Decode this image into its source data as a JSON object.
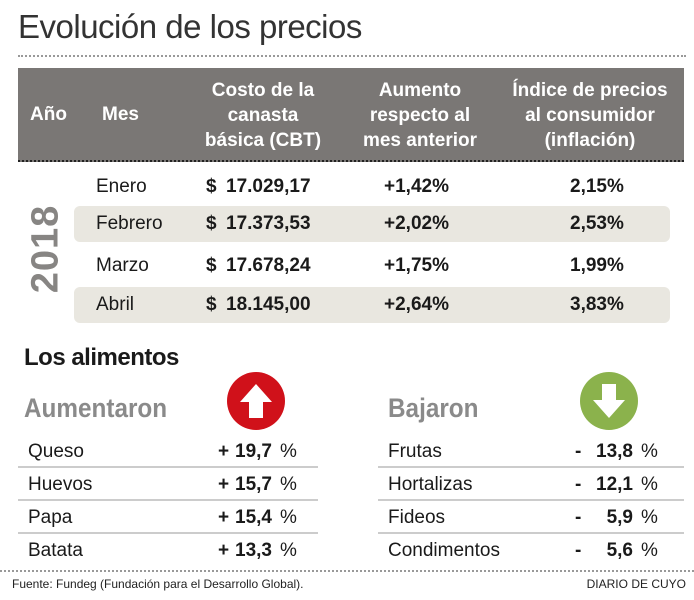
{
  "title": "Evolución de los precios",
  "table": {
    "headers": {
      "year": "Año",
      "month": "Mes",
      "cbt": [
        "Costo de la",
        "canasta",
        "básica (CBT)"
      ],
      "increase": [
        "Aumento",
        "respecto al",
        "mes anterior"
      ],
      "ipc": [
        "Índice de precios",
        "al consumidor",
        "(inflación)"
      ]
    },
    "year": "2018",
    "rows": [
      {
        "month": "Enero",
        "currency": "$",
        "cbt": "17.029,17",
        "increase": "+1,42%",
        "ipc": "2,15%"
      },
      {
        "month": "Febrero",
        "currency": "$",
        "cbt": "17.373,53",
        "increase": "+2,02%",
        "ipc": "2,53%"
      },
      {
        "month": "Marzo",
        "currency": "$",
        "cbt": "17.678,24",
        "increase": "+1,75%",
        "ipc": "1,99%"
      },
      {
        "month": "Abril",
        "currency": "$",
        "cbt": "18.145,00",
        "increase": "+2,64%",
        "ipc": "3,83%"
      }
    ]
  },
  "foods": {
    "title": "Los alimentos",
    "up": {
      "label": "Aumentaron",
      "color": "#d0111a",
      "items": [
        {
          "name": "Queso",
          "sign": "+",
          "value": "19,7",
          "unit": "%"
        },
        {
          "name": "Huevos",
          "sign": "+",
          "value": "15,7",
          "unit": "%"
        },
        {
          "name": "Papa",
          "sign": "+",
          "value": "15,4",
          "unit": "%"
        },
        {
          "name": "Batata",
          "sign": "+",
          "value": "13,3",
          "unit": "%"
        }
      ]
    },
    "down": {
      "label": "Bajaron",
      "color": "#8bb24c",
      "items": [
        {
          "name": "Frutas",
          "sign": "-",
          "value": "13,8",
          "unit": "%"
        },
        {
          "name": "Hortalizas",
          "sign": "-",
          "value": "12,1",
          "unit": "%"
        },
        {
          "name": "Fideos",
          "sign": "-",
          "value": "5,9",
          "unit": "%"
        },
        {
          "name": "Condimentos",
          "sign": "-",
          "value": "5,6",
          "unit": "%"
        }
      ]
    }
  },
  "footer": {
    "source": "Fuente: Fundeg (Fundación para el Desarrollo Global).",
    "brand": "DIARIO DE CUYO"
  }
}
